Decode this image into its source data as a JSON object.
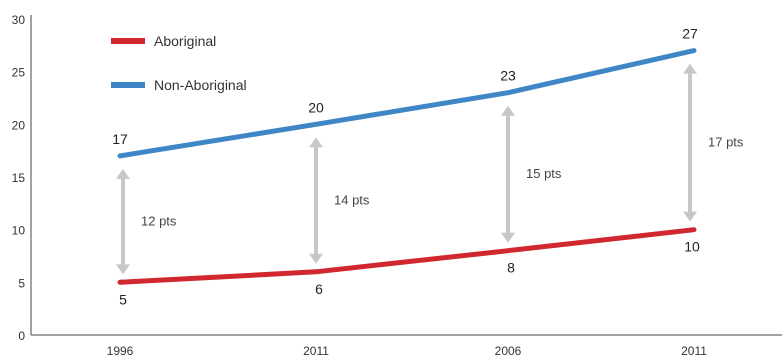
{
  "chart_data": {
    "type": "line",
    "categories": [
      "1996",
      "2011",
      "2006",
      "2011"
    ],
    "ylim": [
      0,
      30
    ],
    "yticks": [
      "0",
      "5",
      "10",
      "15",
      "20",
      "25",
      "30"
    ],
    "grid": false,
    "legend_position": "top-left",
    "series": [
      {
        "name": "Aboriginal",
        "color": "#d0282e",
        "values": [
          5,
          6,
          8,
          10
        ],
        "labels": [
          "5",
          "6",
          "8",
          "10"
        ]
      },
      {
        "name": "Non-Aboriginal",
        "color": "#3f86c6",
        "values": [
          17,
          20,
          23,
          27
        ],
        "labels": [
          "17",
          "20",
          "23",
          "27"
        ]
      }
    ],
    "gaps": [
      "12 pts",
      "14 pts",
      "15 pts",
      "17 pts"
    ]
  },
  "colors": {
    "arrow": "#c7c7c7",
    "axis": "#444444"
  }
}
